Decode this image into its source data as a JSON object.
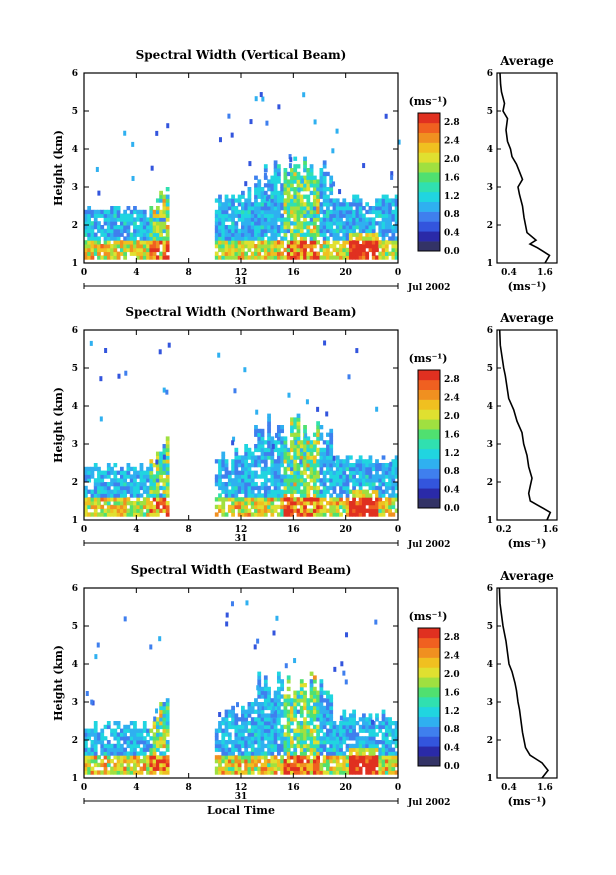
{
  "chart_data": [
    {
      "type": "heatmap",
      "title": "Spectral Width (Vertical Beam)",
      "ylabel": "Height (km)",
      "xlim": [
        0,
        24
      ],
      "ylim": [
        1,
        6
      ],
      "x_ticks": [
        "0",
        "4",
        "8",
        "12",
        "16",
        "20",
        "0"
      ],
      "y_ticks": [
        "1",
        "2",
        "3",
        "4",
        "5",
        "6"
      ],
      "date_label": "31",
      "month_label": "Jul 2002",
      "colorbar": {
        "unit": "(ms⁻¹)",
        "ticks": [
          "0.0",
          "0.4",
          "0.8",
          "1.2",
          "1.6",
          "2.0",
          "2.4",
          "2.8"
        ],
        "range": [
          0,
          3.0
        ]
      },
      "data_gap_hours": [
        6.5,
        10
      ],
      "average_profile": {
        "title": "Average",
        "xlabel": "(ms⁻¹)",
        "x_ticks": [
          "0.4",
          "1.6"
        ],
        "xlim": [
          0,
          2.0
        ],
        "height": [
          1.0,
          1.2,
          1.3,
          1.4,
          1.5,
          1.6,
          1.8,
          2.0,
          2.2,
          2.5,
          2.8,
          3.0,
          3.2,
          3.4,
          3.6,
          3.8,
          4.0,
          4.2,
          4.5,
          4.8,
          5.0,
          5.2,
          5.5,
          5.7,
          6.0
        ],
        "value": [
          1.6,
          1.75,
          1.55,
          1.35,
          1.1,
          1.3,
          1.0,
          0.95,
          0.9,
          0.85,
          0.75,
          0.7,
          0.85,
          0.75,
          0.65,
          0.5,
          0.45,
          0.35,
          0.3,
          0.35,
          0.2,
          0.25,
          0.15,
          0.12,
          0.1
        ]
      },
      "intensity_seed": 1
    },
    {
      "type": "heatmap",
      "title": "Spectral Width (Northward Beam)",
      "ylabel": "Height (km)",
      "xlim": [
        0,
        24
      ],
      "ylim": [
        1,
        6
      ],
      "x_ticks": [
        "0",
        "4",
        "8",
        "12",
        "16",
        "20",
        "0"
      ],
      "y_ticks": [
        "1",
        "2",
        "3",
        "4",
        "5",
        "6"
      ],
      "date_label": "31",
      "month_label": "Jul 2002",
      "colorbar": {
        "unit": "(ms⁻¹)",
        "ticks": [
          "0.0",
          "0.4",
          "0.8",
          "1.2",
          "1.6",
          "2.0",
          "2.4",
          "2.8"
        ],
        "range": [
          0,
          3.0
        ]
      },
      "data_gap_hours": [
        6.5,
        10
      ],
      "average_profile": {
        "title": "Average",
        "xlabel": "(ms⁻¹)",
        "x_ticks": [
          "0.2",
          "1.6"
        ],
        "xlim": [
          0,
          1.8
        ],
        "height": [
          1.0,
          1.2,
          1.3,
          1.4,
          1.5,
          1.7,
          1.9,
          2.1,
          2.4,
          2.7,
          3.0,
          3.3,
          3.6,
          3.9,
          4.2,
          4.5,
          4.8,
          5.0,
          5.3,
          5.6,
          6.0
        ],
        "value": [
          1.5,
          1.6,
          1.4,
          1.2,
          1.0,
          0.95,
          1.0,
          1.05,
          0.95,
          0.9,
          0.8,
          0.75,
          0.6,
          0.5,
          0.35,
          0.3,
          0.25,
          0.2,
          0.15,
          0.1,
          0.08
        ]
      },
      "intensity_seed": 2
    },
    {
      "type": "heatmap",
      "title": "Spectral Width (Eastward Beam)",
      "ylabel": "Height (km)",
      "xlabel": "Local Time",
      "xlim": [
        0,
        24
      ],
      "ylim": [
        1,
        6
      ],
      "x_ticks": [
        "0",
        "4",
        "8",
        "12",
        "16",
        "20",
        "0"
      ],
      "y_ticks": [
        "1",
        "2",
        "3",
        "4",
        "5",
        "6"
      ],
      "date_label": "31",
      "month_label": "Jul 2002",
      "colorbar": {
        "unit": "(ms⁻¹)",
        "ticks": [
          "0.0",
          "0.4",
          "0.8",
          "1.2",
          "1.6",
          "2.0",
          "2.4",
          "2.8"
        ],
        "range": [
          0,
          3.0
        ]
      },
      "data_gap_hours": [
        6.5,
        10
      ],
      "average_profile": {
        "title": "Average",
        "xlabel": "(ms⁻¹)",
        "x_ticks": [
          "0.4",
          "1.6"
        ],
        "xlim": [
          0,
          2.0
        ],
        "height": [
          1.0,
          1.2,
          1.4,
          1.5,
          1.6,
          1.8,
          2.0,
          2.2,
          2.5,
          2.8,
          3.0,
          3.3,
          3.5,
          3.8,
          4.0,
          4.3,
          4.6,
          5.0,
          5.3,
          5.6,
          6.0
        ],
        "value": [
          1.5,
          1.7,
          1.5,
          1.3,
          1.1,
          0.95,
          0.9,
          0.85,
          0.8,
          0.75,
          0.7,
          0.65,
          0.6,
          0.5,
          0.4,
          0.35,
          0.3,
          0.2,
          0.15,
          0.1,
          0.08
        ]
      },
      "intensity_seed": 3
    }
  ]
}
